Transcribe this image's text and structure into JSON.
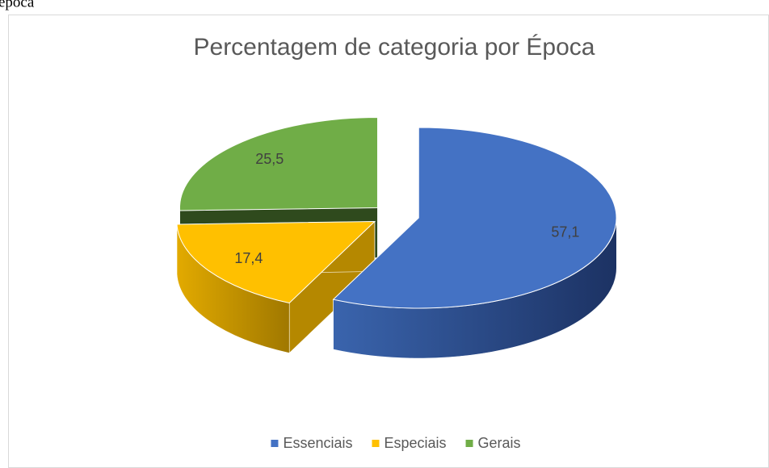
{
  "caption": "época",
  "chart_data": {
    "type": "pie",
    "style": "3d-exploded",
    "title": "Percentagem de categoria por Época",
    "categories": [
      "Essenciais",
      "Especiais",
      "Gerais"
    ],
    "values": [
      57.1,
      17.4,
      25.5
    ],
    "value_labels": [
      "57,1",
      "17,4",
      "25,5"
    ],
    "colors": [
      "#4472c4",
      "#ffc000",
      "#70ad47"
    ],
    "legend": "bottom"
  }
}
